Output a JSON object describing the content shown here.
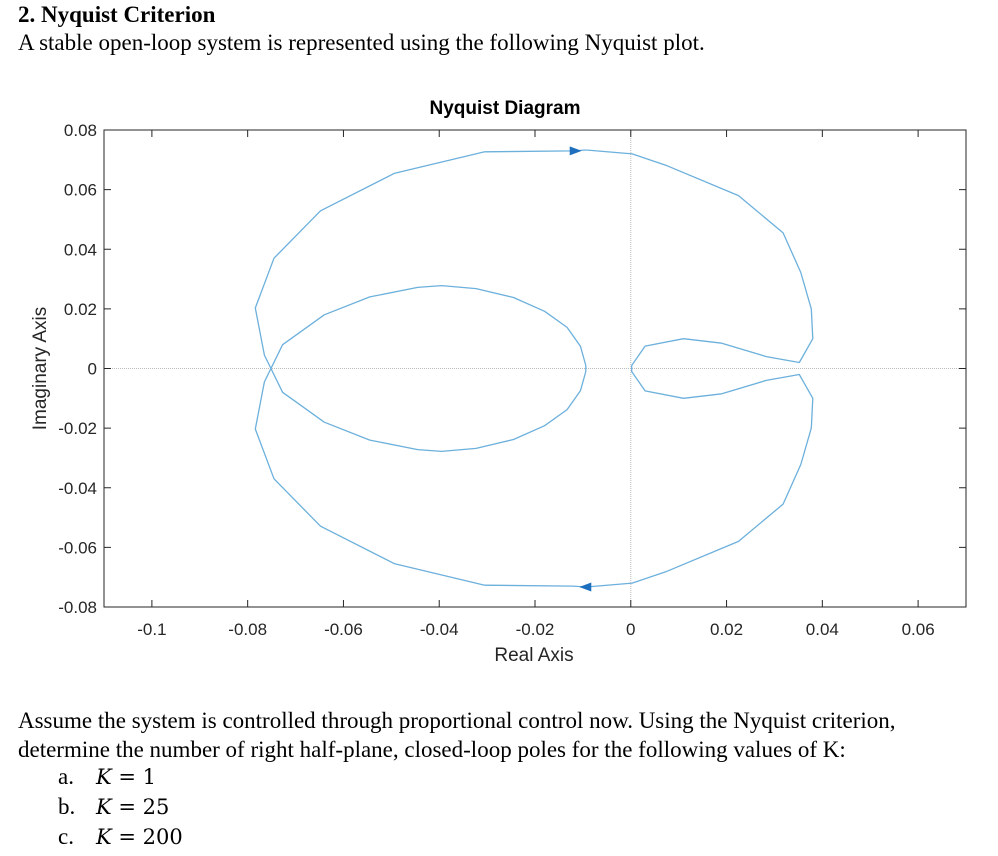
{
  "heading": "2. Nyquist Criterion",
  "intro": "A stable open-loop system is represented using the following Nyquist plot.",
  "chart_data": {
    "type": "line",
    "title": "Nyquist Diagram",
    "xlabel": "Real Axis",
    "ylabel": "Imaginary Axis",
    "xlim": [
      -0.11,
      0.07
    ],
    "ylim": [
      -0.08,
      0.08
    ],
    "xticks": [
      -0.1,
      -0.08,
      -0.06,
      -0.04,
      -0.02,
      0,
      0.02,
      0.04,
      0.06
    ],
    "xtick_labels": [
      "-0.1",
      "-0.08",
      "-0.06",
      "-0.04",
      "-0.02",
      "0",
      "0.02",
      "0.04",
      "0.06"
    ],
    "yticks": [
      0.08,
      0.06,
      0.04,
      0.02,
      0,
      -0.02,
      -0.04,
      -0.06,
      -0.08
    ],
    "ytick_labels": [
      "0.08",
      "0.06",
      "0.04",
      "0.02",
      "0",
      "-0.02",
      "-0.04",
      "-0.06",
      "-0.08"
    ],
    "grid": false,
    "line_color": "#6cb0dc",
    "arrow_color": "#1f6fbf",
    "series": [
      {
        "x": [
          -0.0093,
          -0.0121,
          -0.0305,
          -0.0493,
          -0.0648,
          -0.0745,
          -0.0784,
          -0.0765,
          -0.0727,
          -0.064,
          -0.0545,
          -0.0445,
          -0.0395,
          -0.0323,
          -0.0245,
          -0.018,
          -0.0133,
          -0.0105,
          -0.0094,
          -0.0094,
          -0.0105,
          -0.0133,
          -0.018,
          -0.0245,
          -0.0323,
          -0.0395,
          -0.0445,
          -0.0545,
          -0.064,
          -0.0727,
          -0.0765,
          -0.0784,
          -0.0745,
          -0.0648,
          -0.0493,
          -0.0305,
          -0.0121,
          -0.0093
        ],
        "y": [
          0.0733,
          0.073,
          0.0727,
          0.0655,
          0.0529,
          0.037,
          0.0203,
          0.0045,
          -0.008,
          -0.018,
          -0.024,
          -0.0272,
          -0.0278,
          -0.0268,
          -0.0238,
          -0.0192,
          -0.0138,
          -0.0074,
          -0.001,
          0.001,
          0.0074,
          0.0138,
          0.0192,
          0.0238,
          0.0268,
          0.0278,
          0.0272,
          0.024,
          0.018,
          0.008,
          -0.0045,
          -0.0203,
          -0.037,
          -0.0529,
          -0.0655,
          -0.0727,
          -0.073,
          -0.0733
        ]
      },
      {
        "x": [
          -0.0093,
          0.0003,
          0.0076,
          0.0225,
          0.0318,
          0.0355,
          0.0377,
          0.038,
          0.0352,
          0.0283,
          0.019,
          0.011,
          0.003,
          0.0002,
          0.0002,
          0.003,
          0.011,
          0.019,
          0.0283,
          0.0352,
          0.038,
          0.0377,
          0.0355,
          0.0318,
          0.0225,
          0.0076,
          0.0003,
          -0.0093
        ],
        "y": [
          0.0733,
          0.072,
          0.068,
          0.058,
          0.0455,
          0.0322,
          0.02,
          0.01,
          0.002,
          0.004,
          0.0085,
          0.01,
          0.0075,
          0.001,
          -0.001,
          -0.0075,
          -0.01,
          -0.0085,
          -0.004,
          -0.002,
          -0.01,
          -0.02,
          -0.0322,
          -0.0455,
          -0.058,
          -0.068,
          -0.072,
          -0.0733
        ]
      }
    ],
    "arrows": [
      {
        "x": -0.0115,
        "y": 0.073,
        "direction": "right"
      },
      {
        "x": -0.0095,
        "y": -0.0733,
        "direction": "left"
      }
    ]
  },
  "question": "Assume the system is controlled through proportional control now. Using the Nyquist criterion, determine the number of right half-plane, closed-loop poles for the following values of K:",
  "items": [
    {
      "label": "a.",
      "var": "K",
      "eq": " = 1"
    },
    {
      "label": "b.",
      "var": "K",
      "eq": " = 25"
    },
    {
      "label": "c.",
      "var": "K",
      "eq": " = 200"
    }
  ]
}
